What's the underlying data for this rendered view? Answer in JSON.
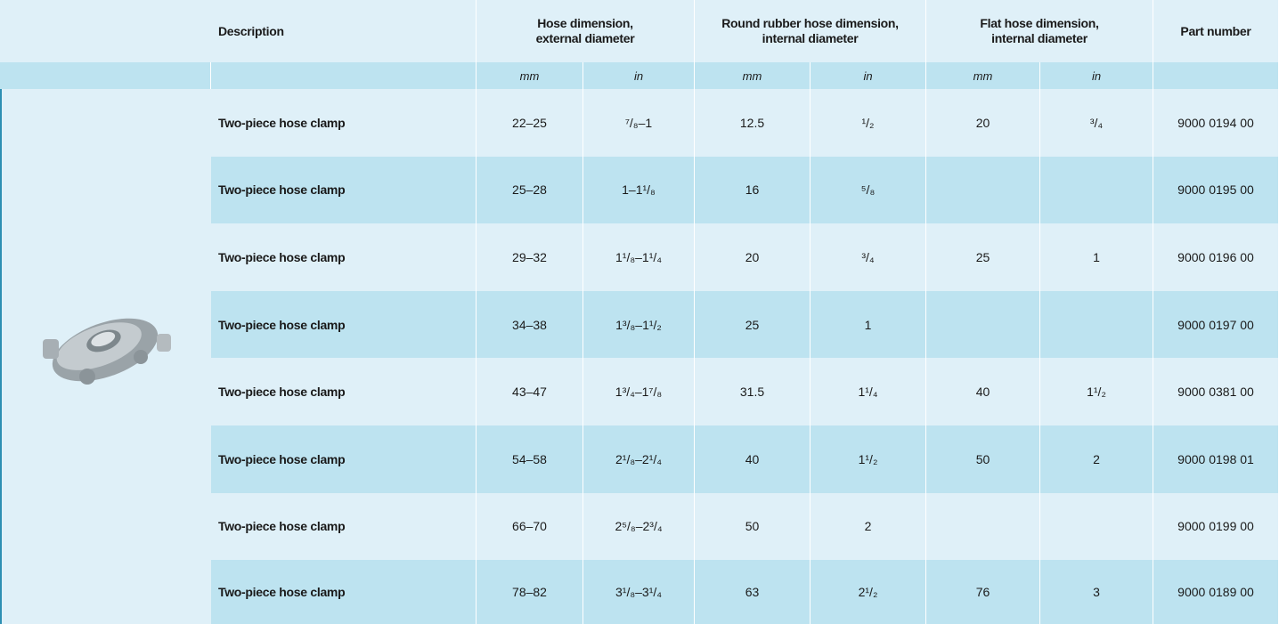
{
  "header": {
    "description": "Description",
    "groups": [
      [
        "Hose dimension,",
        "external diameter"
      ],
      [
        "Round rubber hose dimension,",
        "internal diameter"
      ],
      [
        "Flat hose dimension,",
        "internal diameter"
      ]
    ],
    "part_number": "Part number"
  },
  "units": [
    "mm",
    "in",
    "mm",
    "in",
    "mm",
    "in"
  ],
  "rows": [
    [
      "Two-piece hose clamp",
      "22–25",
      "⁷/₈–1",
      "12.5",
      "¹/₂",
      "20",
      "³/₄",
      "9000 0194 00"
    ],
    [
      "Two-piece hose clamp",
      "25–28",
      "1–1¹/₈",
      "16",
      "⁵/₈",
      null,
      null,
      "9000 0195 00"
    ],
    [
      "Two-piece hose clamp",
      "29–32",
      "1¹/₈–1¹/₄",
      "20",
      "³/₄",
      "25",
      "1",
      "9000 0196 00"
    ],
    [
      "Two-piece hose clamp",
      "34–38",
      "1³/₈–1¹/₂",
      "25",
      "1",
      null,
      null,
      "9000 0197 00"
    ],
    [
      "Two-piece hose clamp",
      "43–47",
      "1³/₄–1⁷/₈",
      "31.5",
      "1¹/₄",
      "40",
      "1¹/₂",
      "9000 0381 00"
    ],
    [
      "Two-piece hose clamp",
      "54–58",
      "2¹/₈–2¹/₄",
      "40",
      "1¹/₂",
      "50",
      "2",
      "9000 0198 01"
    ],
    [
      "Two-piece hose clamp",
      "66–70",
      "2⁵/₈–2³/₄",
      "50",
      "2",
      null,
      null,
      "9000 0199 00"
    ],
    [
      "Two-piece hose clamp",
      "78–82",
      "3¹/₈–3¹/₄",
      "63",
      "2¹/₂",
      "76",
      "3",
      "9000 0189 00"
    ]
  ]
}
